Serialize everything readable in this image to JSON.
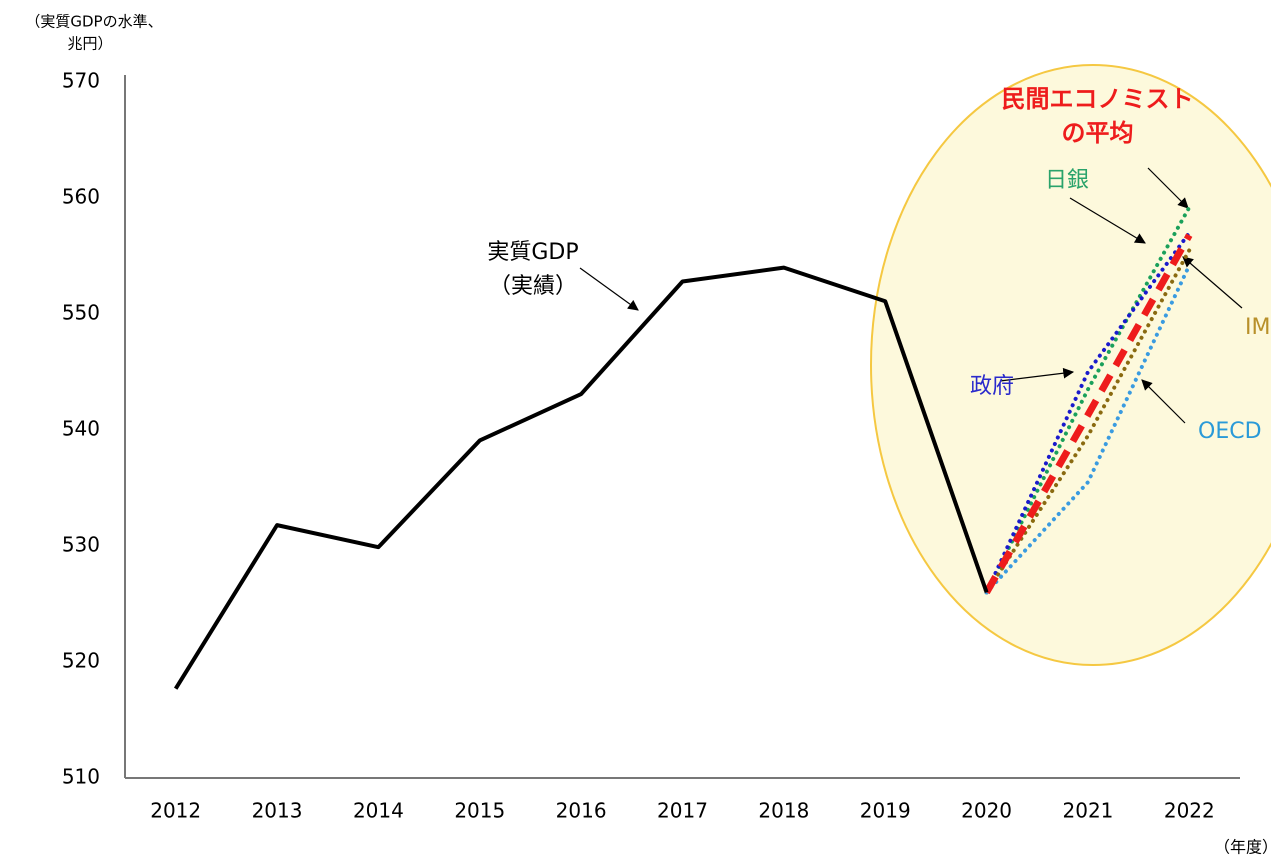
{
  "chart_data": {
    "type": "line",
    "y_label": [
      "（実質GDPの水準、",
      "兆円）"
    ],
    "x_label": "（年度）",
    "categories": [
      "2012",
      "2013",
      "2014",
      "2015",
      "2016",
      "2017",
      "2018",
      "2019",
      "2020",
      "2021",
      "2022"
    ],
    "ylim": [
      510,
      570
    ],
    "yticks": [
      510,
      520,
      530,
      540,
      550,
      560,
      570
    ],
    "series": [
      {
        "name": "実質GDP",
        "color": "#000000",
        "style": "solid",
        "values": [
          517.7,
          531.8,
          529.9,
          539.1,
          543.1,
          552.8,
          554.0,
          551.1,
          526.0,
          null,
          null
        ]
      },
      {
        "name": "日銀",
        "color": "#1aa05a",
        "style": "dotted",
        "values": [
          null,
          null,
          null,
          null,
          null,
          null,
          null,
          null,
          526.0,
          543.5,
          559.2
        ]
      },
      {
        "name": "政府",
        "color": "#1a1acc",
        "style": "dotted",
        "values": [
          null,
          null,
          null,
          null,
          null,
          null,
          null,
          null,
          526.0,
          545.0,
          557.0
        ]
      },
      {
        "name": "IMF",
        "color": "#8a6a10",
        "style": "dotted",
        "values": [
          null,
          null,
          null,
          null,
          null,
          null,
          null,
          null,
          526.0,
          539.5,
          555.5
        ]
      },
      {
        "name": "OECD",
        "color": "#3a9be0",
        "style": "dotted",
        "values": [
          null,
          null,
          null,
          null,
          null,
          null,
          null,
          null,
          526.0,
          535.5,
          554.2
        ]
      },
      {
        "name": "民間エコノミストの平均",
        "color": "#ee1c1c",
        "style": "dashed",
        "values": [
          null,
          null,
          null,
          null,
          null,
          null,
          null,
          null,
          526.0,
          541.3,
          556.8
        ]
      }
    ],
    "annotations": [
      "（実績）"
    ]
  }
}
